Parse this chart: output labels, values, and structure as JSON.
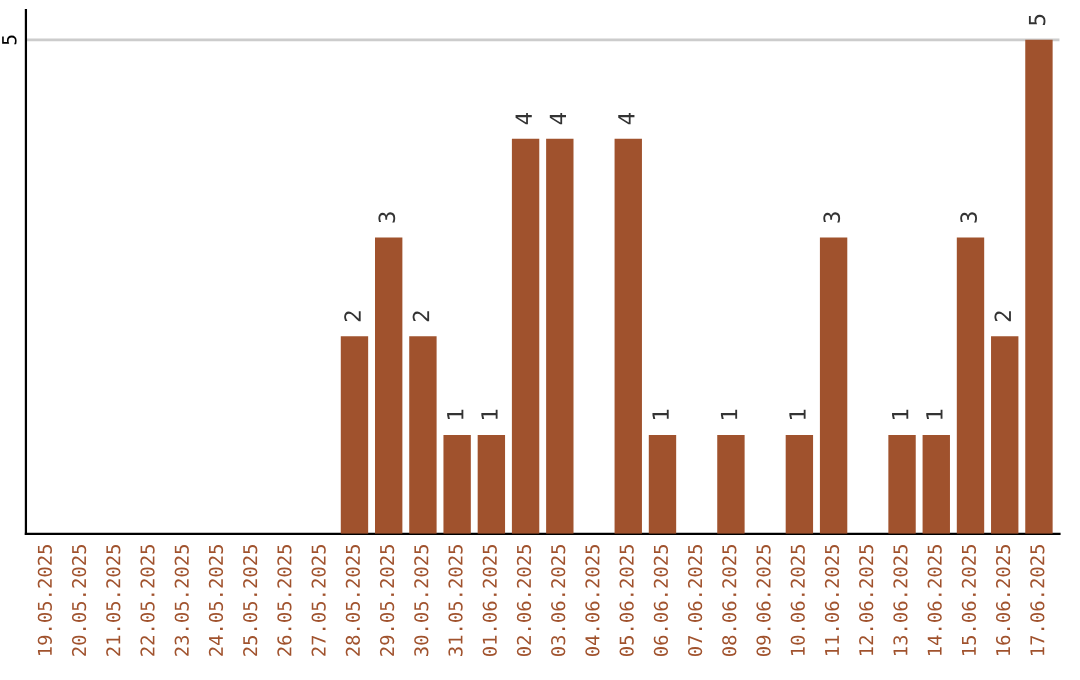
{
  "chart_data": {
    "type": "bar",
    "categories": [
      "19.05.2025",
      "20.05.2025",
      "21.05.2025",
      "22.05.2025",
      "23.05.2025",
      "24.05.2025",
      "25.05.2025",
      "26.05.2025",
      "27.05.2025",
      "28.05.2025",
      "29.05.2025",
      "30.05.2025",
      "31.05.2025",
      "01.06.2025",
      "02.06.2025",
      "03.06.2025",
      "04.06.2025",
      "05.06.2025",
      "06.06.2025",
      "07.06.2025",
      "08.06.2025",
      "09.06.2025",
      "10.06.2025",
      "11.06.2025",
      "12.06.2025",
      "13.06.2025",
      "14.06.2025",
      "15.06.2025",
      "16.06.2025",
      "17.06.2025"
    ],
    "values": [
      null,
      null,
      null,
      null,
      null,
      null,
      null,
      null,
      null,
      2,
      3,
      2,
      1,
      1,
      4,
      4,
      null,
      4,
      1,
      null,
      1,
      null,
      1,
      3,
      null,
      1,
      1,
      3,
      2,
      5
    ],
    "color": "#a0522d",
    "ylim": [
      0,
      5.3
    ],
    "yticks": [
      5
    ],
    "grid": "y",
    "data_labels": true
  }
}
